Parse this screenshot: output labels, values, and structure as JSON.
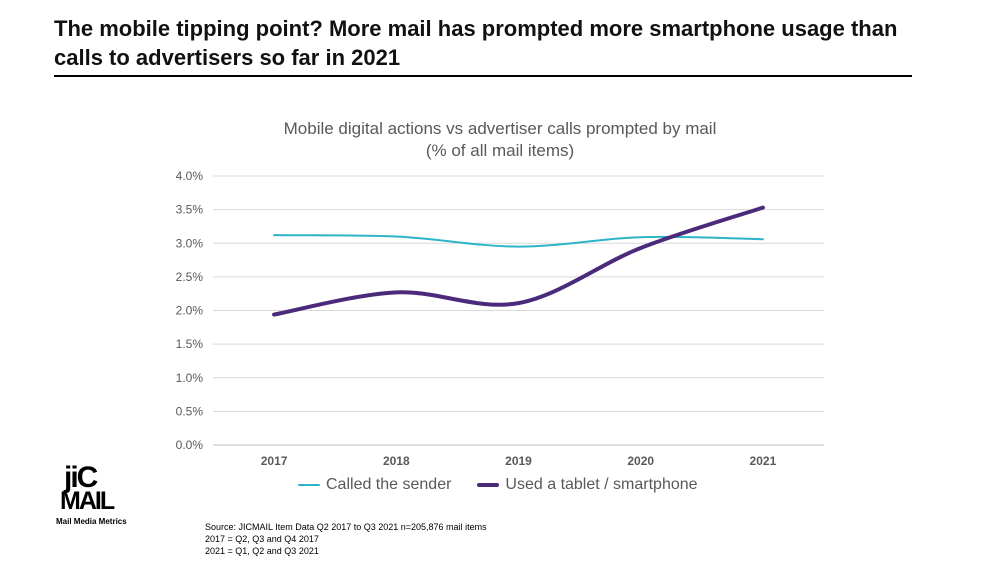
{
  "headline": "The mobile tipping point? More mail has prompted more smartphone usage than calls to advertisers so far in 2021",
  "chart_data": {
    "type": "line",
    "title": "Mobile digital actions vs advertiser calls prompted by mail",
    "subtitle": "(% of all mail items)",
    "categories": [
      "2017",
      "2018",
      "2019",
      "2020",
      "2021"
    ],
    "y_tick_labels": [
      "0.0%",
      "0.5%",
      "1.0%",
      "1.5%",
      "2.0%",
      "2.5%",
      "3.0%",
      "3.5%",
      "4.0%"
    ],
    "ylim": [
      0,
      4
    ],
    "grid": true,
    "legend_position": "bottom",
    "series": [
      {
        "name": "Called the sender",
        "values": [
          3.12,
          3.1,
          2.95,
          3.09,
          3.06
        ],
        "color": "#2CB5C9"
      },
      {
        "name": "Used a tablet / smartphone",
        "values": [
          1.94,
          2.27,
          2.11,
          2.93,
          3.53
        ],
        "color": "#4B2A7B"
      }
    ]
  },
  "logo": {
    "line1": "jiC",
    "line2": "MAIL",
    "tagline": "Mail Media Metrics"
  },
  "source_lines": [
    "Source: JICMAIL Item Data Q2 2017 to Q3 2021 n=205,876 mail items",
    "2017 = Q2, Q3 and Q4 2017",
    "2021 = Q1, Q2 and Q3 2021"
  ]
}
